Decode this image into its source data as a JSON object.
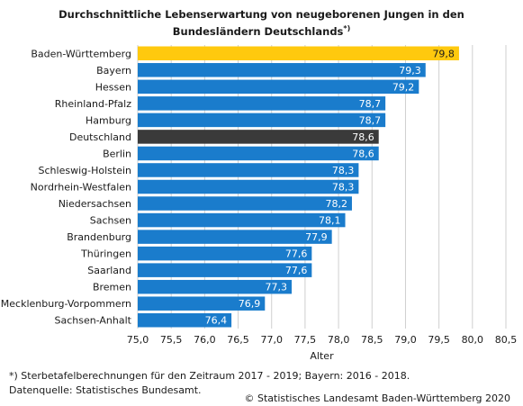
{
  "chart_data": {
    "type": "bar",
    "orientation": "horizontal",
    "title_line1": "Durchschnittliche Lebenserwartung von neugeborenen Jungen in den",
    "title_line2": "Bundesländern Deutschlands",
    "title_marker": "*)",
    "xlabel": "Alter",
    "ylabel": "",
    "xlim": [
      75.0,
      80.5
    ],
    "xticks": [
      "75,0",
      "75,5",
      "76,0",
      "76,5",
      "77,0",
      "77,5",
      "78,0",
      "78,5",
      "79,0",
      "79,5",
      "80,0",
      "80,5"
    ],
    "grid": true,
    "categories": [
      "Baden-Württemberg",
      "Bayern",
      "Hessen",
      "Rheinland-Pfalz",
      "Hamburg",
      "Deutschland",
      "Berlin",
      "Schleswig-Holstein",
      "Nordrhein-Westfalen",
      "Niedersachsen",
      "Sachsen",
      "Brandenburg",
      "Thüringen",
      "Saarland",
      "Bremen",
      "Mecklenburg-Vorpommern",
      "Sachsen-Anhalt"
    ],
    "values": [
      79.8,
      79.3,
      79.2,
      78.7,
      78.7,
      78.6,
      78.6,
      78.3,
      78.3,
      78.2,
      78.1,
      77.9,
      77.6,
      77.6,
      77.3,
      76.9,
      76.4
    ],
    "value_labels": [
      "79,8",
      "79,3",
      "79,2",
      "78,7",
      "78,7",
      "78,6",
      "78,6",
      "78,3",
      "78,3",
      "78,2",
      "78,1",
      "77,9",
      "77,6",
      "77,6",
      "77,3",
      "76,9",
      "76,4"
    ],
    "colors": {
      "default": "#1a7ccc",
      "highlight": "#ffc90e",
      "national": "#3a3a3a",
      "grid": "#cfcfcf"
    },
    "highlight_index": 0,
    "national_index": 5
  },
  "footnote": "*) Sterbetafelberechnungen für den Zeitraum 2017 - 2019; Bayern: 2016 - 2018.",
  "source": "Datenquelle: Statistisches Bundesamt.",
  "copyright": "© Statistisches Landesamt Baden-Württemberg 2020"
}
